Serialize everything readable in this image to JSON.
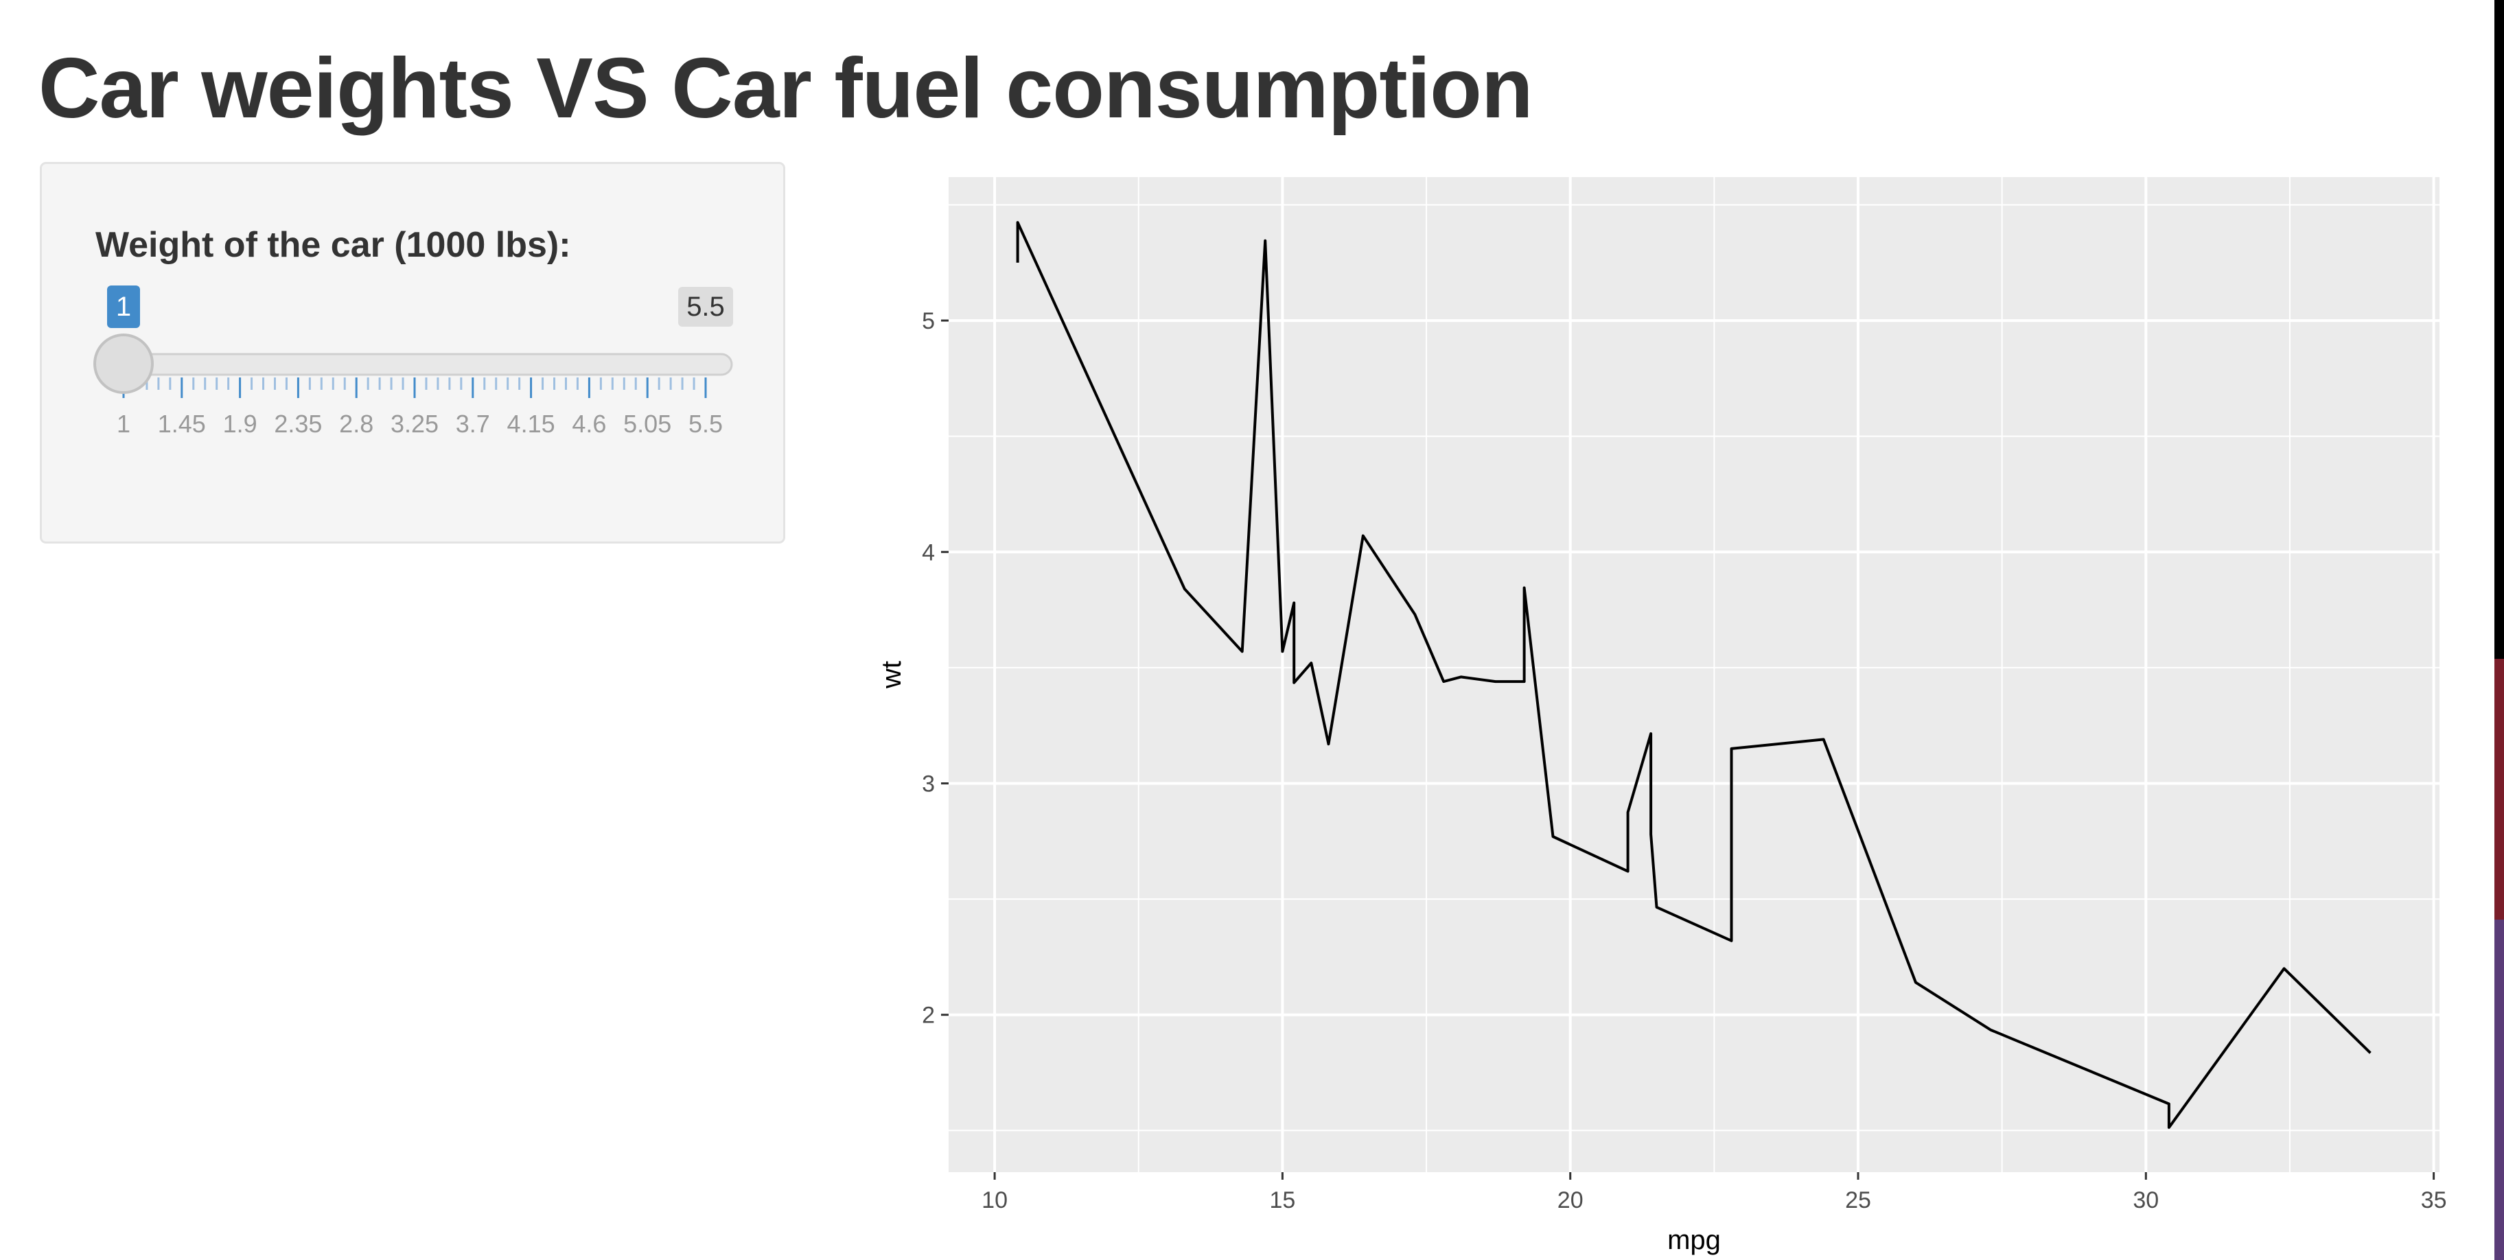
{
  "page": {
    "title": "Car weights VS Car fuel consumption"
  },
  "slider": {
    "label": "Weight of the car (1000 lbs):",
    "min": 1,
    "max": 5.5,
    "value": 1,
    "value_label": "1",
    "max_label": "5.5",
    "tick_labels": [
      "1",
      "1.45",
      "1.9",
      "2.35",
      "2.8",
      "3.25",
      "3.7",
      "4.15",
      "4.6",
      "5.05",
      "5.5"
    ],
    "accent_color": "#428bca"
  },
  "chart_data": {
    "type": "line",
    "title": "",
    "xlabel": "mpg",
    "ylabel": "wt",
    "xlim": [
      9.2,
      35.1
    ],
    "ylim": [
      1.32,
      5.62
    ],
    "x_major_ticks": [
      10,
      15,
      20,
      25,
      30,
      35
    ],
    "x_tick_labels": [
      "10",
      "15",
      "20",
      "25",
      "30",
      "35"
    ],
    "y_major_ticks": [
      2,
      3,
      4,
      5
    ],
    "y_tick_labels": [
      "2",
      "3",
      "4",
      "5"
    ],
    "grid": true,
    "panel_color": "#ebebeb",
    "line_color": "#000000",
    "series": [
      {
        "x": [
          10.4,
          10.4,
          13.3,
          14.3,
          14.7,
          15.0,
          15.2,
          15.2,
          15.5,
          15.8,
          16.4,
          17.3,
          17.8,
          18.1,
          18.7,
          19.2,
          19.2,
          19.7,
          21.0,
          21.0,
          21.4,
          21.4,
          21.5,
          22.8,
          22.8,
          24.4,
          26.0,
          27.3,
          30.4,
          30.4,
          32.4,
          33.9
        ],
        "y": [
          5.25,
          5.424,
          3.84,
          3.57,
          5.345,
          3.57,
          3.78,
          3.435,
          3.52,
          3.17,
          4.07,
          3.73,
          3.44,
          3.46,
          3.44,
          3.44,
          3.845,
          2.77,
          2.62,
          2.875,
          3.215,
          2.78,
          2.465,
          2.32,
          3.15,
          3.19,
          2.14,
          1.935,
          1.615,
          1.513,
          2.2,
          1.835
        ]
      }
    ]
  }
}
